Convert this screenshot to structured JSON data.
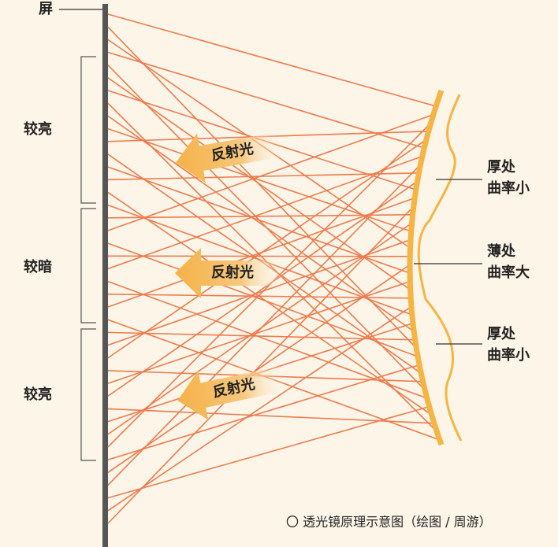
{
  "screen_label": "屏",
  "regions": [
    {
      "label": "较亮"
    },
    {
      "label": "较暗"
    },
    {
      "label": "较亮"
    }
  ],
  "arrows": [
    {
      "label": "反射光"
    },
    {
      "label": "反射光"
    },
    {
      "label": "反射光"
    }
  ],
  "annotations": [
    {
      "lines": [
        "厚处",
        "曲率小"
      ]
    },
    {
      "lines": [
        "薄处",
        "曲率大"
      ]
    },
    {
      "lines": [
        "厚处",
        "曲率小"
      ]
    }
  ],
  "caption": "〇 透光镜原理示意图（绘图 / 周游）"
}
